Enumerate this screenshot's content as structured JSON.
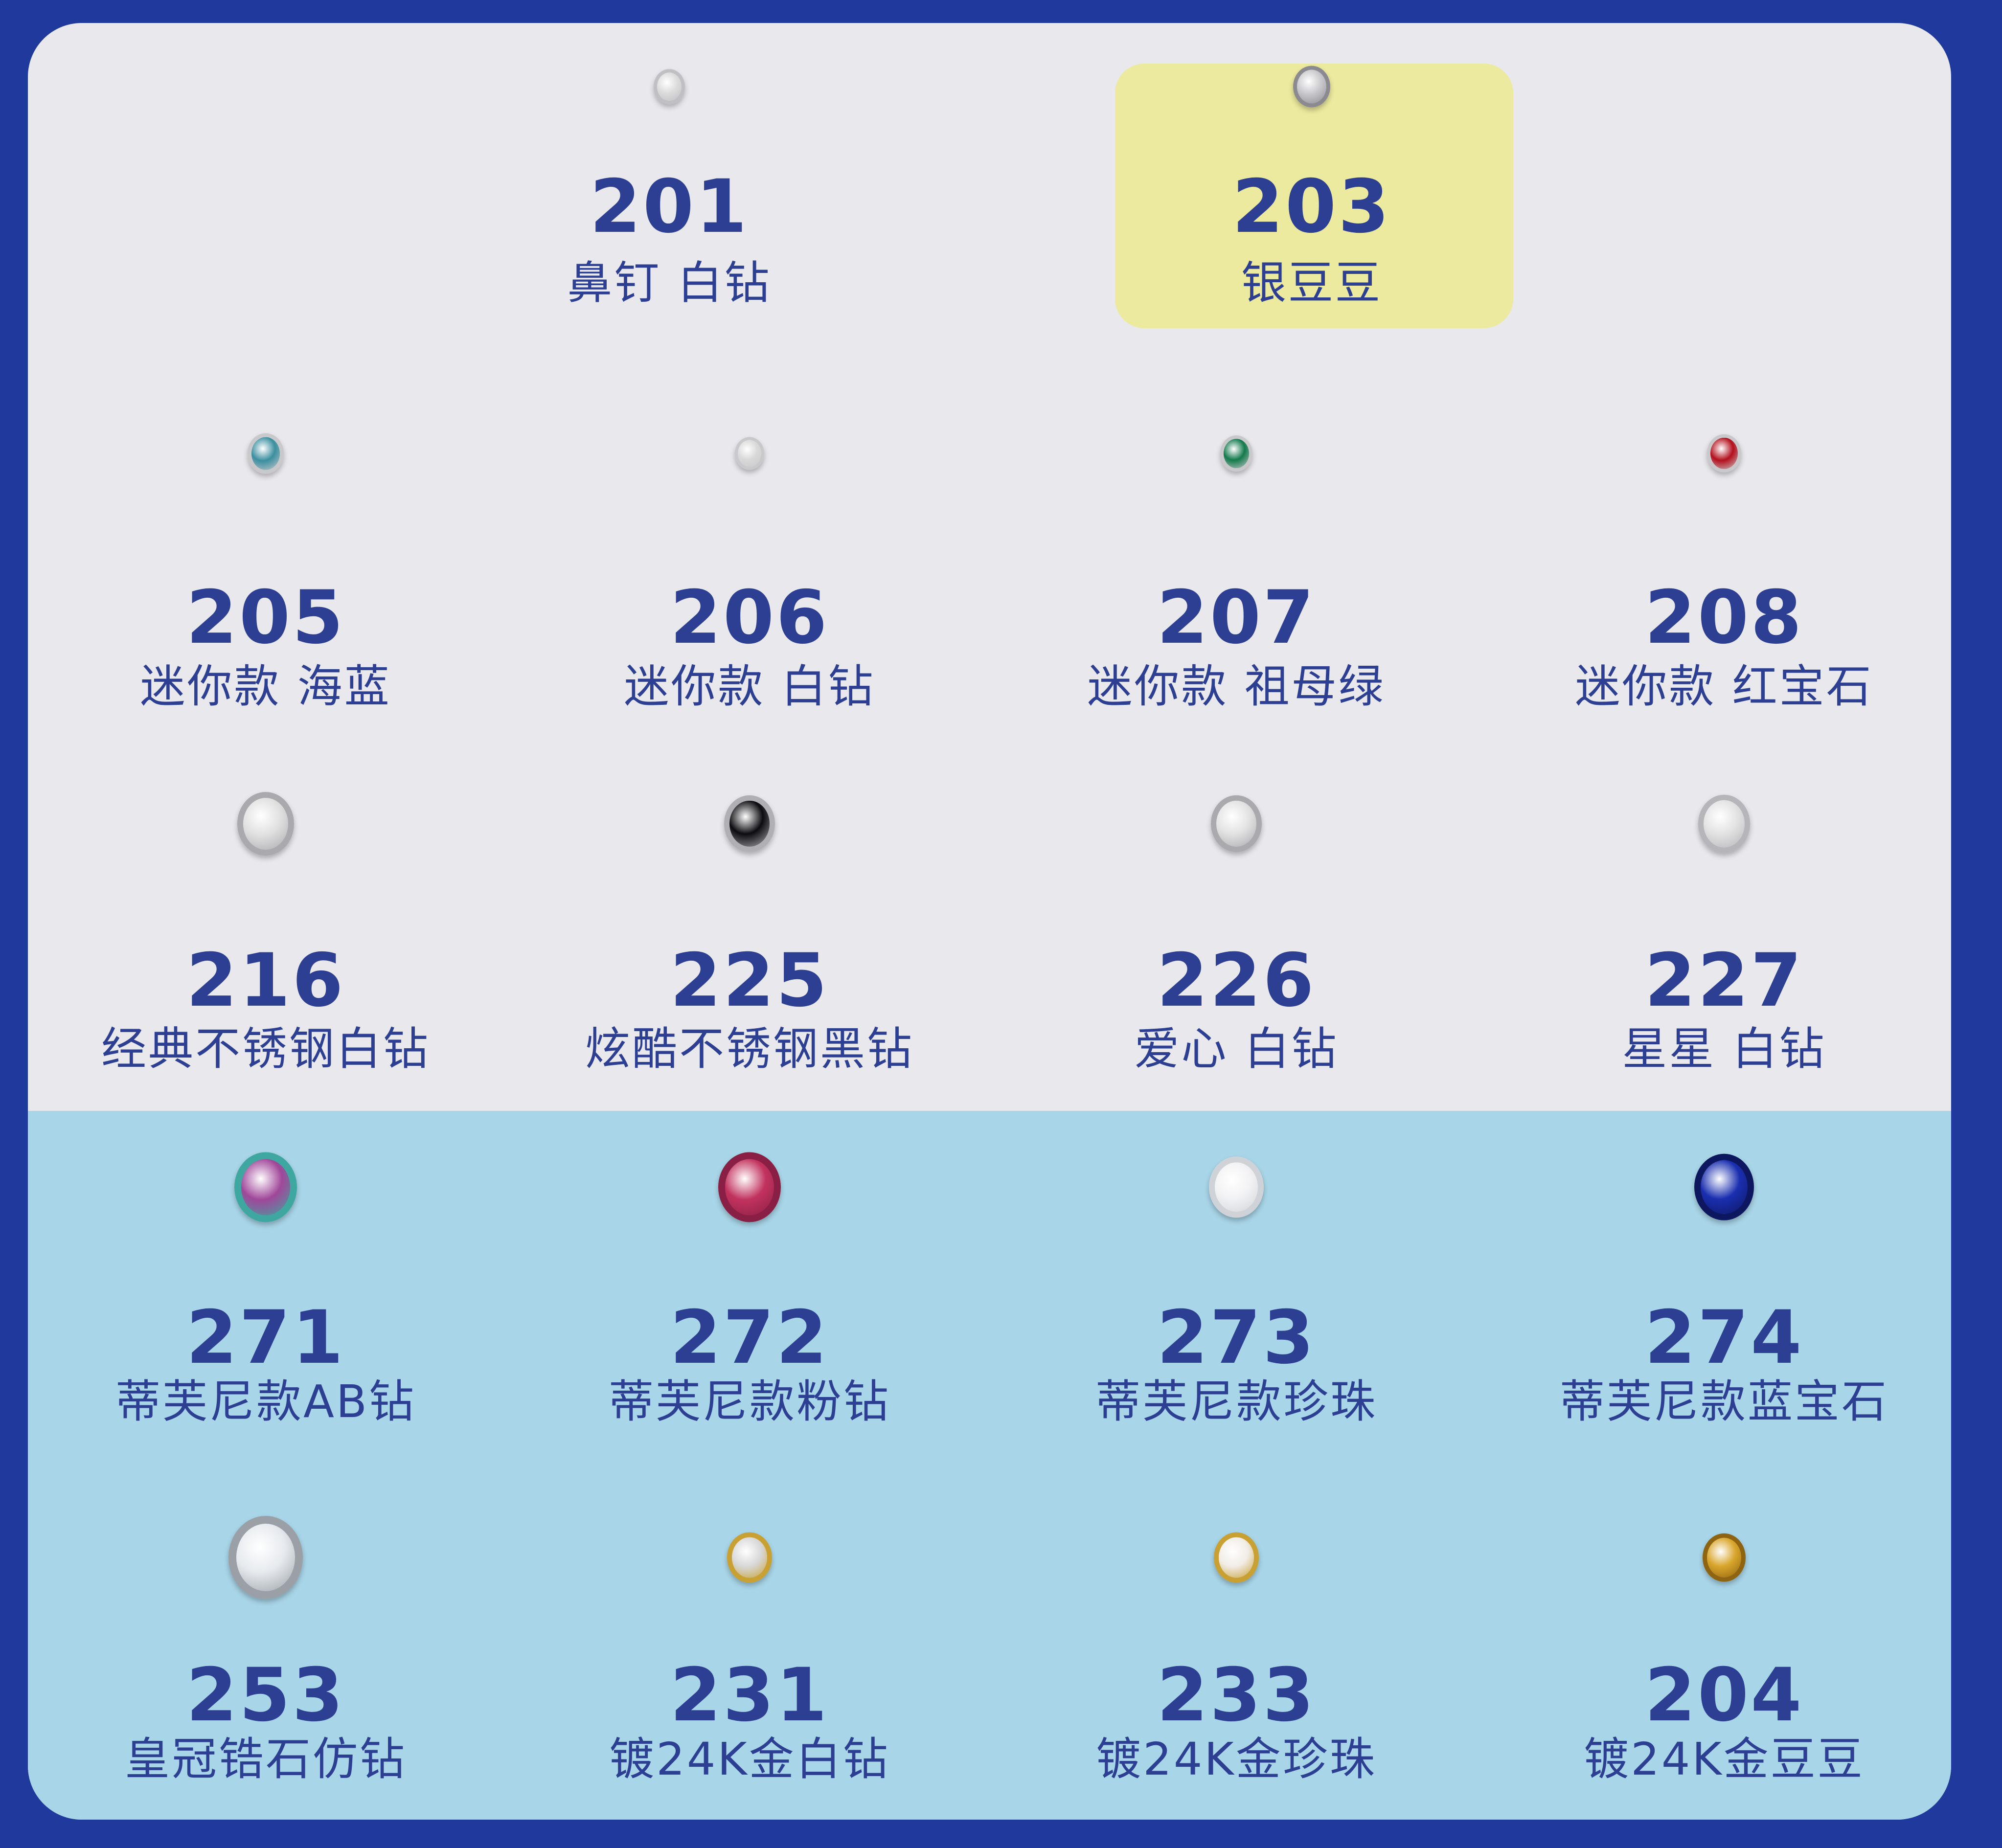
{
  "colors": {
    "border": "#1f3a9c",
    "upper_panel": "#e9e8ec",
    "lower_panel": "#a8d5e8",
    "highlight": "#ecea9e",
    "text": "#2c3f92"
  },
  "items": [
    {
      "number": "201",
      "label": "鼻钉 白钻",
      "icon": "clear-crystal-icon",
      "gem_color": "#dcdcdc",
      "rim_color": "#bfbfc4",
      "highlighted": false
    },
    {
      "number": "203",
      "label": "银豆豆",
      "icon": "silver-ball-icon",
      "gem_color": "#c8c8cc",
      "rim_color": "#8a8a90",
      "highlighted": true
    },
    {
      "number": "205",
      "label": "迷你款 海蓝",
      "icon": "aquamarine-bezel-icon",
      "gem_color": "#3b8fa0",
      "rim_color": "#c9c9cc",
      "highlighted": false
    },
    {
      "number": "206",
      "label": "迷你款 白钻",
      "icon": "white-crystal-bezel-icon",
      "gem_color": "#d9d9d9",
      "rim_color": "#c9c9cc",
      "highlighted": false
    },
    {
      "number": "207",
      "label": "迷你款 祖母绿",
      "icon": "emerald-bezel-icon",
      "gem_color": "#137a4c",
      "rim_color": "#c9c9cc",
      "highlighted": false
    },
    {
      "number": "208",
      "label": "迷你款 红宝石",
      "icon": "ruby-bezel-icon",
      "gem_color": "#b3101c",
      "rim_color": "#c9c9cc",
      "highlighted": false
    },
    {
      "number": "216",
      "label": "经典不锈钢白钻",
      "icon": "white-crystal-bezel-icon",
      "gem_color": "#e0e0e0",
      "rim_color": "#a9a9ae",
      "highlighted": false
    },
    {
      "number": "225",
      "label": "炫酷不锈钢黑钻",
      "icon": "black-crystal-bezel-icon",
      "gem_color": "#0c0c10",
      "rim_color": "#b0b0b4",
      "highlighted": false
    },
    {
      "number": "226",
      "label": "爱心 白钻",
      "icon": "heart-crystal-icon",
      "gem_color": "#e2e2e2",
      "rim_color": "#a9a9ae",
      "highlighted": false
    },
    {
      "number": "227",
      "label": "星星 白钻",
      "icon": "star-crystal-icon",
      "gem_color": "#e2e2e2",
      "rim_color": "#b5b5ba",
      "highlighted": false
    },
    {
      "number": "271",
      "label": "蒂芙尼款AB钻",
      "icon": "ab-crystal-prong-icon",
      "gem_color": "#a0479a",
      "rim_color": "#3ea7a0",
      "highlighted": false
    },
    {
      "number": "272",
      "label": "蒂芙尼款粉钻",
      "icon": "pink-crystal-prong-icon",
      "gem_color": "#c2335f",
      "rim_color": "#8a1f45",
      "highlighted": false
    },
    {
      "number": "273",
      "label": "蒂芙尼款珍珠",
      "icon": "pearl-prong-icon",
      "gem_color": "#f2f2f4",
      "rim_color": "#cfd3d8",
      "highlighted": false
    },
    {
      "number": "274",
      "label": "蒂芙尼款蓝宝石",
      "icon": "sapphire-prong-icon",
      "gem_color": "#1a2fb0",
      "rim_color": "#0d1760",
      "highlighted": false
    },
    {
      "number": "253",
      "label": "皇冠锆石仿钻",
      "icon": "crown-zircon-icon",
      "gem_color": "#e6eaee",
      "rim_color": "#9aa0a6",
      "highlighted": false
    },
    {
      "number": "231",
      "label": "镀24K金白钻",
      "icon": "gold-bezel-crystal-icon",
      "gem_color": "#d8d8d8",
      "rim_color": "#c9a133",
      "highlighted": false
    },
    {
      "number": "233",
      "label": "镀24K金珍珠",
      "icon": "gold-bezel-pearl-icon",
      "gem_color": "#f1ece6",
      "rim_color": "#c9a133",
      "highlighted": false
    },
    {
      "number": "204",
      "label": "镀24K金豆豆",
      "icon": "gold-ball-icon",
      "gem_color": "#d9a62c",
      "rim_color": "#8f6410",
      "highlighted": false
    }
  ]
}
